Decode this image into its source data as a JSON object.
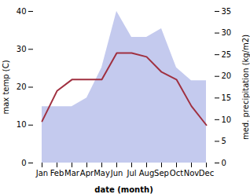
{
  "chart_data": {
    "type": "line",
    "categories": [
      "Jan",
      "Feb",
      "Mar",
      "Apr",
      "May",
      "Jun",
      "Jul",
      "Aug",
      "Sep",
      "Oct",
      "Nov",
      "Dec"
    ],
    "xlabel": "date (month)",
    "ylabel": "max temp (C)",
    "y2label": "med. precipitation (kg/m2)",
    "ylim": [
      0,
      40
    ],
    "yticks": [
      0,
      10,
      20,
      30,
      40
    ],
    "y2lim": [
      0,
      35
    ],
    "y2ticks": [
      0,
      5,
      10,
      15,
      20,
      25,
      30,
      35
    ],
    "grid": false,
    "series": [
      {
        "type": "area",
        "axis": "y2",
        "color": "#b0b8e8",
        "values": [
          13,
          13,
          13,
          15,
          22,
          35,
          29,
          29,
          31,
          22,
          19,
          19
        ]
      },
      {
        "type": "line",
        "color": "#a03040",
        "values": [
          11,
          19,
          22,
          22,
          22,
          29,
          29,
          28,
          24,
          22,
          15,
          10
        ]
      }
    ]
  }
}
